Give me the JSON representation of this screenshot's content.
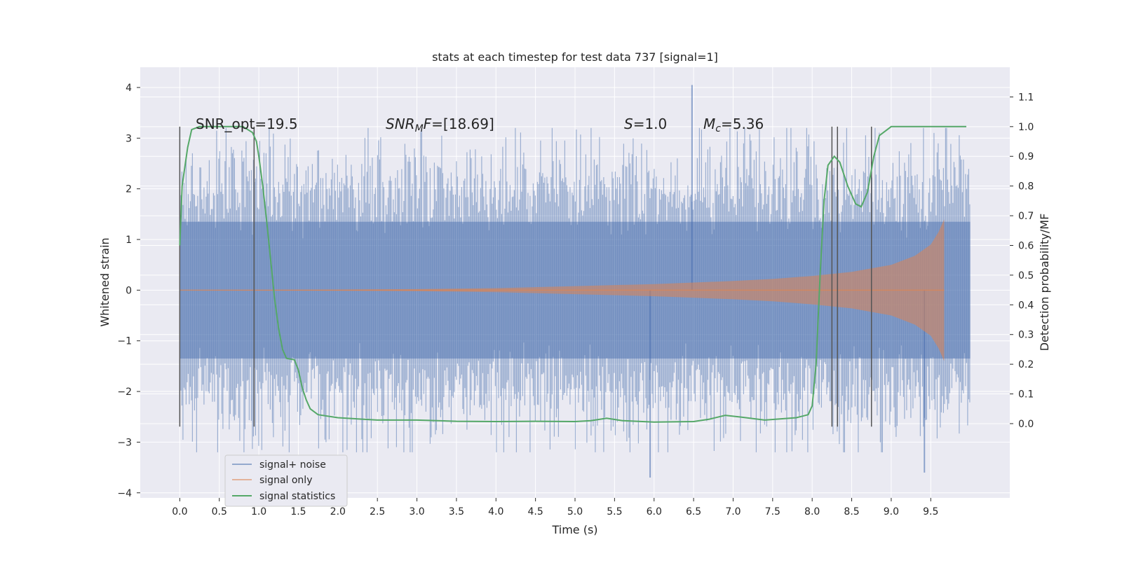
{
  "chart_data": {
    "type": "line",
    "title": "stats at each timestep for test data 737 [signal=1]",
    "xlabel": "Time (s)",
    "ylabel": "Whitened strain",
    "ylabel_right": "Detection probability/MF",
    "xlim": [
      -0.5,
      10.5
    ],
    "ylim": [
      -4.1,
      4.4
    ],
    "ylim_right": [
      -0.25,
      1.2
    ],
    "x_ticks": [
      0.0,
      0.5,
      1.0,
      1.5,
      2.0,
      2.5,
      3.0,
      3.5,
      4.0,
      4.5,
      5.0,
      5.5,
      6.0,
      6.5,
      7.0,
      7.5,
      8.0,
      8.5,
      9.0,
      9.5
    ],
    "y_ticks": [
      -4,
      -3,
      -2,
      -1,
      0,
      1,
      2,
      3,
      4
    ],
    "y_ticks_right": [
      0.0,
      0.1,
      0.2,
      0.3,
      0.4,
      0.5,
      0.6,
      0.7,
      0.8,
      0.9,
      1.0,
      1.1
    ],
    "x_tick_labels": [
      "0.0",
      "0.5",
      "1.0",
      "1.5",
      "2.0",
      "2.5",
      "3.0",
      "3.5",
      "4.0",
      "4.5",
      "5.0",
      "5.5",
      "6.0",
      "6.5",
      "7.0",
      "7.5",
      "8.0",
      "8.5",
      "9.0",
      "9.5"
    ],
    "y_tick_labels": [
      "−4",
      "−3",
      "−2",
      "−1",
      "0",
      "1",
      "2",
      "3",
      "4"
    ],
    "y_tick_labels_right": [
      "0.0",
      "0.1",
      "0.2",
      "0.3",
      "0.4",
      "0.5",
      "0.6",
      "0.7",
      "0.8",
      "0.9",
      "1.0",
      "1.1"
    ],
    "grid": true,
    "legend_position": "lower-left",
    "annotations": {
      "snr_opt": "SNR_opt=19.5",
      "snr_mf_italic": "SNR",
      "snr_mf_sub": "M",
      "snr_mf_italic2": "F",
      "snr_mf_value": "=[18.69]",
      "s_italic": "S",
      "s_value": "=1.0",
      "mc_italic": "M",
      "mc_sub": "c",
      "mc_value": "=5.36"
    },
    "series": [
      {
        "name": "signal+ noise",
        "color": "#4c72b0",
        "axis": "left",
        "x_range": [
          0.0,
          10.0
        ],
        "noise_envelope": {
          "core": 1.35,
          "typical_peak": 2.3,
          "max_peak": 4.05,
          "min_peak": -3.7
        }
      },
      {
        "name": "signal only",
        "color": "#dd8452",
        "axis": "left",
        "x_range": [
          0.0,
          9.67
        ],
        "envelope": [
          [
            0.0,
            0.0
          ],
          [
            2.0,
            0.01
          ],
          [
            3.0,
            0.02
          ],
          [
            4.0,
            0.04
          ],
          [
            5.0,
            0.08
          ],
          [
            6.0,
            0.12
          ],
          [
            7.0,
            0.18
          ],
          [
            7.5,
            0.22
          ],
          [
            8.0,
            0.28
          ],
          [
            8.5,
            0.36
          ],
          [
            9.0,
            0.5
          ],
          [
            9.3,
            0.68
          ],
          [
            9.5,
            0.9
          ],
          [
            9.6,
            1.15
          ],
          [
            9.67,
            1.4
          ]
        ]
      },
      {
        "name": "signal statistics",
        "color": "#55a868",
        "axis": "right",
        "points": [
          [
            0.0,
            0.6
          ],
          [
            0.03,
            0.8
          ],
          [
            0.1,
            0.93
          ],
          [
            0.15,
            0.99
          ],
          [
            0.25,
            1.0
          ],
          [
            0.5,
            1.0
          ],
          [
            0.8,
            1.0
          ],
          [
            0.92,
            0.98
          ],
          [
            0.97,
            0.95
          ],
          [
            1.0,
            0.9
          ],
          [
            1.05,
            0.8
          ],
          [
            1.1,
            0.68
          ],
          [
            1.15,
            0.55
          ],
          [
            1.2,
            0.42
          ],
          [
            1.25,
            0.32
          ],
          [
            1.3,
            0.25
          ],
          [
            1.35,
            0.22
          ],
          [
            1.45,
            0.215
          ],
          [
            1.5,
            0.18
          ],
          [
            1.55,
            0.12
          ],
          [
            1.6,
            0.08
          ],
          [
            1.65,
            0.05
          ],
          [
            1.75,
            0.03
          ],
          [
            2.0,
            0.02
          ],
          [
            2.5,
            0.012
          ],
          [
            3.0,
            0.012
          ],
          [
            3.5,
            0.008
          ],
          [
            4.0,
            0.007
          ],
          [
            4.5,
            0.008
          ],
          [
            5.0,
            0.007
          ],
          [
            5.2,
            0.01
          ],
          [
            5.4,
            0.018
          ],
          [
            5.6,
            0.01
          ],
          [
            6.0,
            0.005
          ],
          [
            6.5,
            0.007
          ],
          [
            6.7,
            0.015
          ],
          [
            6.9,
            0.028
          ],
          [
            7.1,
            0.022
          ],
          [
            7.4,
            0.012
          ],
          [
            7.8,
            0.02
          ],
          [
            7.95,
            0.03
          ],
          [
            8.0,
            0.06
          ],
          [
            8.05,
            0.2
          ],
          [
            8.1,
            0.5
          ],
          [
            8.15,
            0.75
          ],
          [
            8.2,
            0.87
          ],
          [
            8.28,
            0.9
          ],
          [
            8.35,
            0.88
          ],
          [
            8.45,
            0.8
          ],
          [
            8.55,
            0.74
          ],
          [
            8.62,
            0.73
          ],
          [
            8.7,
            0.78
          ],
          [
            8.78,
            0.9
          ],
          [
            8.85,
            0.97
          ],
          [
            9.0,
            1.0
          ],
          [
            9.5,
            1.0
          ],
          [
            9.95,
            1.0
          ]
        ]
      }
    ],
    "vertical_markers": [
      0.0,
      0.94,
      8.25,
      8.32,
      8.75
    ],
    "vertical_marker_range": [
      -0.01,
      1.0
    ]
  }
}
